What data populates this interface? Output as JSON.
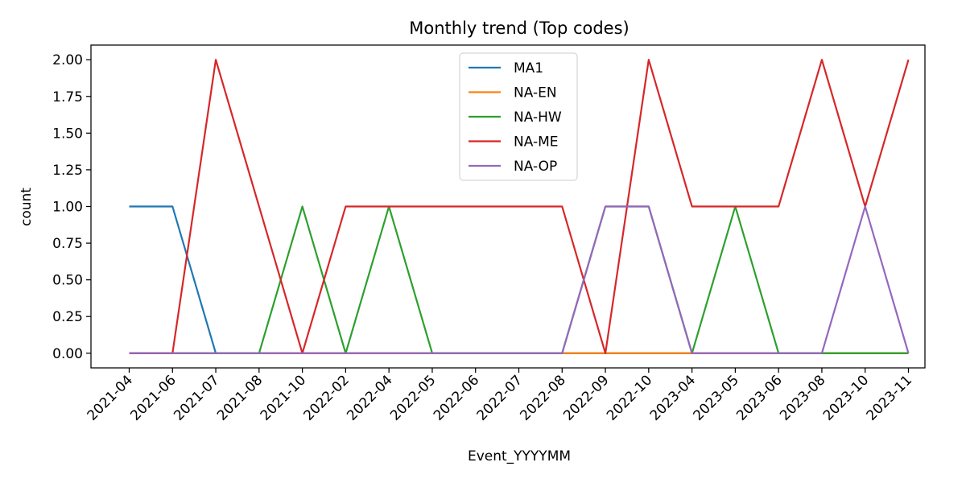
{
  "chart_data": {
    "type": "line",
    "title": "Monthly trend (Top codes)",
    "xlabel": "Event_YYYYMM",
    "ylabel": "count",
    "categories": [
      "2021-04",
      "2021-06",
      "2021-07",
      "2021-08",
      "2021-10",
      "2022-02",
      "2022-04",
      "2022-05",
      "2022-06",
      "2022-07",
      "2022-08",
      "2022-09",
      "2022-10",
      "2023-04",
      "2023-05",
      "2023-06",
      "2023-08",
      "2023-10",
      "2023-11"
    ],
    "yticks": [
      "0.00",
      "0.25",
      "0.50",
      "0.75",
      "1.00",
      "1.25",
      "1.50",
      "1.75",
      "2.00"
    ],
    "ylim": [
      -0.1,
      2.1
    ],
    "grid": false,
    "legend_position": "upper center",
    "series": [
      {
        "name": "MA1",
        "color": "#1f77b4",
        "values": [
          1,
          1,
          0,
          0,
          0,
          0,
          0,
          0,
          0,
          0,
          0,
          0,
          0,
          0,
          0,
          0,
          0,
          0,
          0
        ]
      },
      {
        "name": "NA-EN",
        "color": "#ff7f0e",
        "values": [
          0,
          0,
          0,
          0,
          0,
          0,
          0,
          0,
          0,
          0,
          0,
          0,
          0,
          0,
          0,
          0,
          0,
          0,
          0
        ]
      },
      {
        "name": "NA-HW",
        "color": "#2ca02c",
        "values": [
          0,
          0,
          0,
          0,
          1,
          0,
          1,
          0,
          0,
          0,
          0,
          1,
          1,
          0,
          1,
          0,
          0,
          0,
          0
        ]
      },
      {
        "name": "NA-ME",
        "color": "#d62728",
        "values": [
          0,
          0,
          2,
          1,
          0,
          1,
          1,
          1,
          1,
          1,
          1,
          0,
          2,
          1,
          1,
          1,
          2,
          1,
          2
        ]
      },
      {
        "name": "NA-OP",
        "color": "#9467bd",
        "values": [
          0,
          0,
          0,
          0,
          0,
          0,
          0,
          0,
          0,
          0,
          0,
          1,
          1,
          0,
          0,
          0,
          0,
          1,
          0
        ]
      }
    ]
  }
}
